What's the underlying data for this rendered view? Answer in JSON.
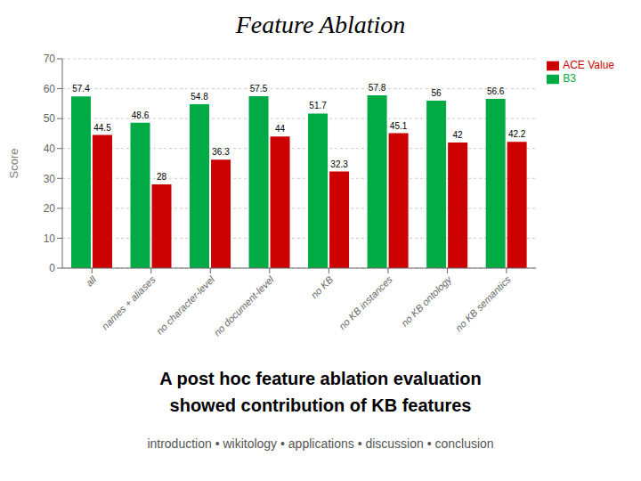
{
  "chart_data": {
    "type": "bar",
    "title": "Feature Ablation",
    "subtitle": [
      "A post hoc feature ablation evaluation",
      "showed contribution of KB features"
    ],
    "annotations": [
      "introduction • wikitology • applications • discussion • conclusion"
    ],
    "categories": [
      "all",
      "names + aliases",
      "no character-level",
      "no document-level",
      "no KB",
      "no KB instances",
      "no KB ontology",
      "no KB semantics"
    ],
    "series": [
      {
        "name": "B3",
        "color": "#00aa44",
        "values": [
          57.4,
          48.6,
          54.8,
          57.5,
          51.7,
          57.8,
          56.0,
          56.6
        ]
      },
      {
        "name": "ACE Value",
        "color": "#cc0000",
        "values": [
          44.5,
          28.0,
          36.3,
          44.0,
          32.3,
          45.1,
          42.0,
          42.2
        ]
      }
    ],
    "ylabel": "Score",
    "ylim": [
      0,
      70
    ],
    "yticks": [
      0,
      10,
      20,
      30,
      40,
      50,
      60,
      70
    ],
    "grid": true,
    "legend": "right",
    "data_labels": true
  }
}
